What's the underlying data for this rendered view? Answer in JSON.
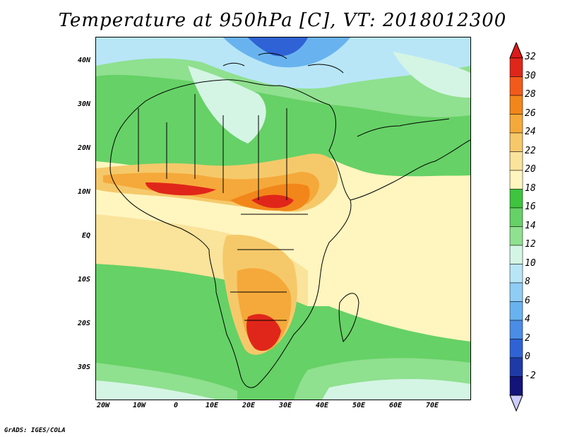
{
  "title": "Temperature at 950hPa [C], VT: 2018012300",
  "credit": "GrADS: IGES/COLA",
  "map": {
    "variable": "Temperature",
    "level": "950hPa",
    "units": "C",
    "valid_time": "2018012300",
    "region": "Africa",
    "lat_labels": [
      "40N",
      "30N",
      "20N",
      "10N",
      "EQ",
      "10S",
      "20S",
      "30S"
    ],
    "lon_labels": [
      "20W",
      "10W",
      "0",
      "10E",
      "20E",
      "30E",
      "40E",
      "50E",
      "60E",
      "70E"
    ],
    "colorbar": {
      "labels": [
        "32",
        "30",
        "28",
        "26",
        "24",
        "22",
        "20",
        "18",
        "16",
        "14",
        "12",
        "10",
        "8",
        "6",
        "4",
        "2",
        "0",
        "-2"
      ],
      "colors": [
        "#e0261a",
        "#f25a1a",
        "#f2861a",
        "#f5a93a",
        "#f5c96a",
        "#fae39a",
        "#fff5bf",
        "#3ec43e",
        "#66d166",
        "#8fe08f",
        "#d4f5e4",
        "#b8e6f7",
        "#8fcdf5",
        "#68b3ef",
        "#4a8ce6",
        "#2f62d4",
        "#1f3aa8",
        "#13137a"
      ],
      "over_color": "#dd1a1a",
      "under_color": "#ccccff"
    }
  }
}
